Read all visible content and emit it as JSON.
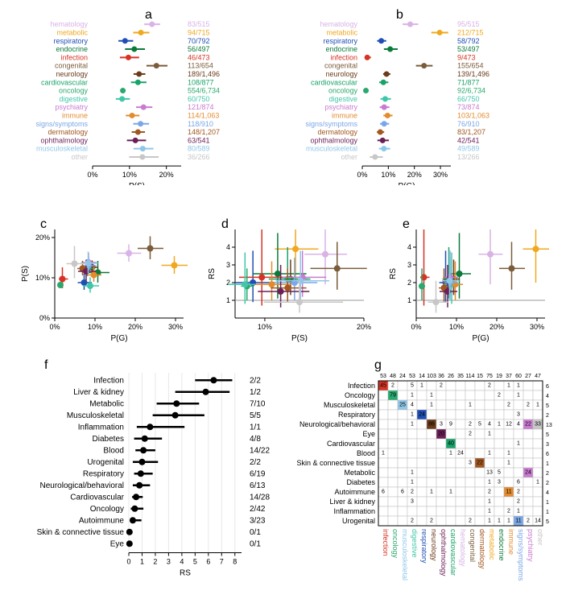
{
  "categories": [
    {
      "name": "hematology",
      "color": "#d9b3e6",
      "ps": 16.1,
      "ps_lo": 14.0,
      "ps_hi": 18.3,
      "pg": 18.4,
      "pg_lo": 15.5,
      "pg_hi": 21.5,
      "psfrac": "83/515",
      "pgfrac": "95/515"
    },
    {
      "name": "metabolic",
      "color": "#f0a81e",
      "ps": 13.1,
      "ps_lo": 11.0,
      "ps_hi": 15.4,
      "pg": 29.7,
      "pg_lo": 26.5,
      "pg_hi": 33.0,
      "psfrac": "94/715",
      "pgfrac": "212/715"
    },
    {
      "name": "respiratory",
      "color": "#1f4fb4",
      "ps": 8.8,
      "ps_lo": 7.0,
      "ps_hi": 11.0,
      "pg": 7.3,
      "pg_lo": 5.7,
      "pg_hi": 9.2,
      "psfrac": "70/792",
      "pgfrac": "58/792"
    },
    {
      "name": "endocrine",
      "color": "#0a7a3a",
      "ps": 11.3,
      "ps_lo": 8.8,
      "ps_hi": 14.2,
      "pg": 10.7,
      "pg_lo": 8.3,
      "pg_hi": 13.6,
      "psfrac": "56/497",
      "pgfrac": "53/497"
    },
    {
      "name": "infection",
      "color": "#d63324",
      "ps": 9.7,
      "ps_lo": 7.4,
      "ps_hi": 12.6,
      "pg": 1.9,
      "pg_lo": 1.0,
      "pg_hi": 3.3,
      "psfrac": "46/473",
      "pgfrac": "9/473"
    },
    {
      "name": "congenital",
      "color": "#7a5c3a",
      "ps": 17.3,
      "ps_lo": 14.6,
      "ps_hi": 20.3,
      "pg": 23.7,
      "pg_lo": 20.6,
      "pg_hi": 27.0,
      "psfrac": "113/654",
      "pgfrac": "155/654"
    },
    {
      "name": "neurology",
      "color": "#6b3b1b",
      "ps": 12.6,
      "ps_lo": 11.1,
      "ps_hi": 14.3,
      "pg": 9.3,
      "pg_lo": 8.0,
      "pg_hi": 10.8,
      "psfrac": "189/1,496",
      "pgfrac": "139/1,496"
    },
    {
      "name": "cardiovascular",
      "color": "#19a36a",
      "ps": 12.3,
      "ps_lo": 10.4,
      "ps_hi": 14.6,
      "pg": 8.1,
      "pg_lo": 6.5,
      "pg_hi": 10.0,
      "psfrac": "108/877",
      "pgfrac": "71/877"
    },
    {
      "name": "oncology",
      "color": "#2aa86d",
      "ps": 8.2,
      "ps_lo": 7.6,
      "ps_hi": 8.9,
      "pg": 1.4,
      "pg_lo": 1.1,
      "pg_hi": 1.7,
      "psfrac": "554/6,734",
      "pgfrac": "92/6,734"
    },
    {
      "name": "digestive",
      "color": "#3fc7a8",
      "ps": 8.0,
      "ps_lo": 6.3,
      "ps_hi": 10.1,
      "pg": 8.8,
      "pg_lo": 7.0,
      "pg_hi": 11.0,
      "psfrac": "60/750",
      "pgfrac": "66/750"
    },
    {
      "name": "psychiatry",
      "color": "#c97bd1",
      "ps": 13.8,
      "ps_lo": 11.8,
      "ps_hi": 16.2,
      "pg": 8.4,
      "pg_lo": 6.7,
      "pg_hi": 10.4,
      "psfrac": "121/874",
      "pgfrac": "73/874"
    },
    {
      "name": "immune",
      "color": "#e38b2d",
      "ps": 10.7,
      "ps_lo": 9.0,
      "ps_hi": 12.7,
      "pg": 9.7,
      "pg_lo": 8.1,
      "pg_hi": 11.6,
      "psfrac": "114/1,063",
      "pgfrac": "103/1,063"
    },
    {
      "name": "signs/symptoms",
      "color": "#7aa7e6",
      "ps": 13.0,
      "ps_lo": 11.0,
      "ps_hi": 15.3,
      "pg": 8.4,
      "pg_lo": 6.8,
      "pg_hi": 10.3,
      "psfrac": "118/910",
      "pgfrac": "76/910"
    },
    {
      "name": "dermatology",
      "color": "#a1571f",
      "ps": 12.3,
      "ps_lo": 10.6,
      "ps_hi": 14.2,
      "pg": 6.9,
      "pg_lo": 5.6,
      "pg_hi": 8.4,
      "psfrac": "148/1,207",
      "pgfrac": "83/1,207"
    },
    {
      "name": "ophthalmology",
      "color": "#6b1f57",
      "ps": 11.6,
      "ps_lo": 9.3,
      "ps_hi": 14.5,
      "pg": 7.8,
      "pg_lo": 5.8,
      "pg_hi": 10.2,
      "psfrac": "63/541",
      "pgfrac": "42/541"
    },
    {
      "name": "musculoskeletal",
      "color": "#8fc7e8",
      "ps": 13.6,
      "ps_lo": 11.1,
      "ps_hi": 16.5,
      "pg": 8.3,
      "pg_lo": 6.4,
      "pg_hi": 10.7,
      "psfrac": "80/589",
      "pgfrac": "49/589"
    },
    {
      "name": "other",
      "color": "#c7c7c7",
      "ps": 13.5,
      "ps_lo": 9.9,
      "ps_hi": 17.9,
      "pg": 4.9,
      "pg_lo": 2.9,
      "pg_hi": 7.9,
      "psfrac": "36/266",
      "pgfrac": "13/266"
    }
  ],
  "panel_a": {
    "xlabel": "P(S)",
    "xticks": [
      0,
      10,
      20
    ],
    "xticklabels": [
      "0%",
      "10%",
      "20%"
    ],
    "xmax": 24
  },
  "panel_b": {
    "xlabel": "P(G)",
    "xticks": [
      0,
      10,
      20,
      30
    ],
    "xticklabels": [
      "0%",
      "10%",
      "20%",
      "30%"
    ],
    "xmax": 34
  },
  "panel_c": {
    "xlabel": "P(G)",
    "ylabel": "P(S)",
    "xticks": [
      0,
      10,
      20,
      30
    ],
    "xticklabels": [
      "0%",
      "10%",
      "20%",
      "30%"
    ],
    "yticks": [
      0,
      10,
      20
    ],
    "yticklabels": [
      "0%",
      "10%",
      "20%"
    ],
    "xmax": 32,
    "ymax": 22
  },
  "panel_d": {
    "xlabel": "P(S)",
    "ylabel": "RS",
    "xticks": [
      10,
      20
    ],
    "xticklabels": [
      "10%",
      "20%"
    ],
    "yticks": [
      1,
      2,
      3,
      4
    ],
    "xmin": 7,
    "xmax": 20,
    "ymin": 0,
    "ymax": 5,
    "hline": 1
  },
  "panel_e": {
    "xlabel": "P(G)",
    "ylabel": "RS",
    "xticks": [
      0,
      10,
      20,
      30
    ],
    "xticklabels": [
      "0%",
      "10%",
      "20%",
      "30%"
    ],
    "yticks": [
      1,
      2,
      3,
      4
    ],
    "xmin": 0,
    "xmax": 32,
    "ymin": 0,
    "ymax": 5,
    "hline": 1
  },
  "rs_data": {
    "hematology": {
      "rs": 3.6,
      "lo": 1.9,
      "hi": 5.0
    },
    "metabolic": {
      "rs": 3.9,
      "lo": 2.0,
      "hi": 5.0
    },
    "respiratory": {
      "rs": 2.0,
      "lo": 0.9,
      "hi": 3.8
    },
    "endocrine": {
      "rs": 2.5,
      "lo": 1.1,
      "hi": 4.8
    },
    "infection": {
      "rs": 2.3,
      "lo": 0.7,
      "hi": 5.0
    },
    "congenital": {
      "rs": 2.8,
      "lo": 1.6,
      "hi": 4.3
    },
    "neurology": {
      "rs": 2.2,
      "lo": 1.3,
      "hi": 3.3
    },
    "cardiovascular": {
      "rs": 2.2,
      "lo": 1.1,
      "hi": 4.0
    },
    "oncology": {
      "rs": 1.8,
      "lo": 1.0,
      "hi": 2.8
    },
    "digestive": {
      "rs": 1.9,
      "lo": 0.8,
      "hi": 3.7
    },
    "psychiatry": {
      "rs": 2.3,
      "lo": 1.2,
      "hi": 3.8
    },
    "immune": {
      "rs": 1.9,
      "lo": 1.0,
      "hi": 3.2
    },
    "signs/symptoms": {
      "rs": 2.0,
      "lo": 1.0,
      "hi": 3.4
    },
    "dermatology": {
      "rs": 1.7,
      "lo": 0.9,
      "hi": 2.8
    },
    "ophthalmology": {
      "rs": 1.5,
      "lo": 0.6,
      "hi": 3.0
    },
    "musculoskeletal": {
      "rs": 2.1,
      "lo": 1.0,
      "hi": 3.8
    },
    "other": {
      "rs": 0.9,
      "lo": 0.3,
      "hi": 2.1
    }
  },
  "panel_f": {
    "xlabel": "RS",
    "xticks": [
      0,
      1,
      2,
      3,
      4,
      5,
      6,
      7,
      8
    ],
    "xmax": 8.5,
    "rows": [
      {
        "name": "Infection",
        "rs": 6.4,
        "lo": 5.0,
        "hi": 7.8,
        "frac": "2/2"
      },
      {
        "name": "Liver & kidney",
        "rs": 5.8,
        "lo": 3.5,
        "hi": 7.6,
        "frac": "1/2"
      },
      {
        "name": "Metabolic",
        "rs": 3.6,
        "lo": 2.1,
        "hi": 5.3,
        "frac": "7/10"
      },
      {
        "name": "Musculoskeletal",
        "rs": 3.5,
        "lo": 1.8,
        "hi": 5.7,
        "frac": "5/5"
      },
      {
        "name": "Inflammation",
        "rs": 1.6,
        "lo": 0.6,
        "hi": 4.2,
        "frac": "1/1"
      },
      {
        "name": "Diabetes",
        "rs": 1.2,
        "lo": 0.4,
        "hi": 2.5,
        "frac": "4/8"
      },
      {
        "name": "Blood",
        "rs": 1.1,
        "lo": 0.5,
        "hi": 2.0,
        "frac": "14/22"
      },
      {
        "name": "Urogenital",
        "rs": 1.0,
        "lo": 0.3,
        "hi": 2.2,
        "frac": "2/2"
      },
      {
        "name": "Respiratory",
        "rs": 0.9,
        "lo": 0.4,
        "hi": 1.8,
        "frac": "6/19"
      },
      {
        "name": "Neurological/behavioral",
        "rs": 0.8,
        "lo": 0.3,
        "hi": 1.6,
        "frac": "6/13"
      },
      {
        "name": "Cardiovascular",
        "rs": 0.55,
        "lo": 0.25,
        "hi": 1.05,
        "frac": "14/28"
      },
      {
        "name": "Oncology",
        "rs": 0.45,
        "lo": 0.15,
        "hi": 1.1,
        "frac": "2/42"
      },
      {
        "name": "Autoimmune",
        "rs": 0.3,
        "lo": 0.1,
        "hi": 0.95,
        "frac": "3/23"
      },
      {
        "name": "Skin & connective tissue",
        "rs": 0.05,
        "lo": 0.0,
        "hi": 0.15,
        "frac": "0/1"
      },
      {
        "name": "Eye",
        "rs": 0.05,
        "lo": 0.0,
        "hi": 0.15,
        "frac": "0/1"
      }
    ]
  },
  "panel_g": {
    "rows": [
      "Infection",
      "Oncology",
      "Musculoskeletal",
      "Respiratory",
      "Neurological/behavioral",
      "Eye",
      "Cardiovascular",
      "Blood",
      "Skin & connective tissue",
      "Metabolic",
      "Diabetes",
      "Autoimmune",
      "Liver & kidney",
      "Inflammation",
      "Urogenital"
    ],
    "cols": [
      "infection",
      "oncology",
      "musculoskeletal",
      "digestive",
      "respiratory",
      "neurology",
      "ophthalmology",
      "cardiovascular",
      "hematology",
      "congenital",
      "dermatology",
      "metabolic",
      "endocrine",
      "immune",
      "signs/symptoms",
      "psychiatry",
      "other"
    ],
    "col_totals": [
      53,
      48,
      24,
      53,
      14,
      103,
      36,
      26,
      35,
      114,
      15,
      75,
      19,
      37,
      60,
      27,
      47
    ],
    "row_totals": [
      6,
      4,
      5,
      2,
      13,
      5,
      3,
      6,
      1,
      2,
      2,
      4,
      1,
      1,
      5
    ],
    "cells": [
      {
        "r": 0,
        "c": 0,
        "v": 45,
        "bg": "#d63324",
        "fg": "#ffffff"
      },
      {
        "r": 0,
        "c": 1,
        "v": 2
      },
      {
        "r": 0,
        "c": 3,
        "v": 5
      },
      {
        "r": 0,
        "c": 4,
        "v": 1
      },
      {
        "r": 0,
        "c": 6,
        "v": 2
      },
      {
        "r": 0,
        "c": 11,
        "v": 2
      },
      {
        "r": 0,
        "c": 13,
        "v": 1
      },
      {
        "r": 0,
        "c": 14,
        "v": 1
      },
      {
        "r": 1,
        "c": 1,
        "v": 79,
        "bg": "#2aa86d",
        "fg": "#ffffff"
      },
      {
        "r": 1,
        "c": 3,
        "v": 1
      },
      {
        "r": 1,
        "c": 5,
        "v": 1
      },
      {
        "r": 1,
        "c": 12,
        "v": 2
      },
      {
        "r": 1,
        "c": 14,
        "v": 1
      },
      {
        "r": 2,
        "c": 2,
        "v": 25,
        "bg": "#8fc7e8"
      },
      {
        "r": 2,
        "c": 3,
        "v": 4
      },
      {
        "r": 2,
        "c": 5,
        "v": 1
      },
      {
        "r": 2,
        "c": 9,
        "v": 1
      },
      {
        "r": 2,
        "c": 13,
        "v": 2
      },
      {
        "r": 2,
        "c": 15,
        "v": 2
      },
      {
        "r": 2,
        "c": 16,
        "v": 1
      },
      {
        "r": 3,
        "c": 4,
        "v": 24,
        "bg": "#1f4fb4",
        "fg": "#ffffff"
      },
      {
        "r": 3,
        "c": 3,
        "v": 1
      },
      {
        "r": 3,
        "c": 14,
        "v": 3
      },
      {
        "r": 4,
        "c": 3,
        "v": 1
      },
      {
        "r": 4,
        "c": 5,
        "v": 86,
        "bg": "#6b3b1b",
        "fg": "#ffffff"
      },
      {
        "r": 4,
        "c": 6,
        "v": 3
      },
      {
        "r": 4,
        "c": 7,
        "v": 9
      },
      {
        "r": 4,
        "c": 9,
        "v": 2
      },
      {
        "r": 4,
        "c": 11,
        "v": 4
      },
      {
        "r": 4,
        "c": 12,
        "v": 1
      },
      {
        "r": 4,
        "c": 13,
        "v": 12
      },
      {
        "r": 4,
        "c": 14,
        "v": 4
      },
      {
        "r": 4,
        "c": 15,
        "v": 22,
        "bg": "#c97bd1"
      },
      {
        "r": 4,
        "c": 16,
        "v": 33,
        "bg": "#c7c7c7"
      },
      {
        "r": 4,
        "c": 10,
        "v": 5
      },
      {
        "r": 5,
        "c": 6,
        "v": 20,
        "bg": "#6b1f57",
        "fg": "#ffffff"
      },
      {
        "r": 5,
        "c": 9,
        "v": 2
      },
      {
        "r": 5,
        "c": 11,
        "v": 1
      },
      {
        "r": 6,
        "c": 7,
        "v": 40,
        "bg": "#19a36a",
        "fg": "#ffffff"
      },
      {
        "r": 6,
        "c": 14,
        "v": 1
      },
      {
        "r": 7,
        "c": 0,
        "v": 1
      },
      {
        "r": 7,
        "c": 7,
        "v": 1
      },
      {
        "r": 7,
        "c": 8,
        "v": 24
      },
      {
        "r": 7,
        "c": 11,
        "v": 1
      },
      {
        "r": 7,
        "c": 13,
        "v": 1
      },
      {
        "r": 8,
        "c": 9,
        "v": 3
      },
      {
        "r": 8,
        "c": 10,
        "v": 22,
        "bg": "#a1571f",
        "fg": "#ffffff"
      },
      {
        "r": 8,
        "c": 13,
        "v": 1
      },
      {
        "r": 9,
        "c": 3,
        "v": 1
      },
      {
        "r": 9,
        "c": 11,
        "v": 13
      },
      {
        "r": 9,
        "c": 12,
        "v": 5
      },
      {
        "r": 9,
        "c": 15,
        "v": 24,
        "bg": "#c97bd1"
      },
      {
        "r": 10,
        "c": 3,
        "v": 1
      },
      {
        "r": 10,
        "c": 11,
        "v": 1
      },
      {
        "r": 10,
        "c": 12,
        "v": 3
      },
      {
        "r": 10,
        "c": 14,
        "v": 6
      },
      {
        "r": 10,
        "c": 16,
        "v": 1
      },
      {
        "r": 11,
        "c": 0,
        "v": 6
      },
      {
        "r": 11,
        "c": 2,
        "v": 6
      },
      {
        "r": 11,
        "c": 3,
        "v": 2
      },
      {
        "r": 11,
        "c": 5,
        "v": 1
      },
      {
        "r": 11,
        "c": 7,
        "v": 1
      },
      {
        "r": 11,
        "c": 11,
        "v": 2
      },
      {
        "r": 11,
        "c": 13,
        "v": 11,
        "bg": "#e38b2d"
      },
      {
        "r": 11,
        "c": 14,
        "v": 2
      },
      {
        "r": 12,
        "c": 3,
        "v": 3
      },
      {
        "r": 12,
        "c": 11,
        "v": 1
      },
      {
        "r": 12,
        "c": 14,
        "v": 2
      },
      {
        "r": 13,
        "c": 11,
        "v": 1
      },
      {
        "r": 13,
        "c": 13,
        "v": 2
      },
      {
        "r": 13,
        "c": 14,
        "v": 1
      },
      {
        "r": 14,
        "c": 3,
        "v": 2
      },
      {
        "r": 14,
        "c": 5,
        "v": 2
      },
      {
        "r": 14,
        "c": 9,
        "v": 2
      },
      {
        "r": 14,
        "c": 11,
        "v": 1
      },
      {
        "r": 14,
        "c": 12,
        "v": 1
      },
      {
        "r": 14,
        "c": 13,
        "v": 1
      },
      {
        "r": 14,
        "c": 14,
        "v": 11,
        "bg": "#7aa7e6"
      },
      {
        "r": 14,
        "c": 15,
        "v": 2
      },
      {
        "r": 14,
        "c": 16,
        "v": 14
      }
    ]
  }
}
